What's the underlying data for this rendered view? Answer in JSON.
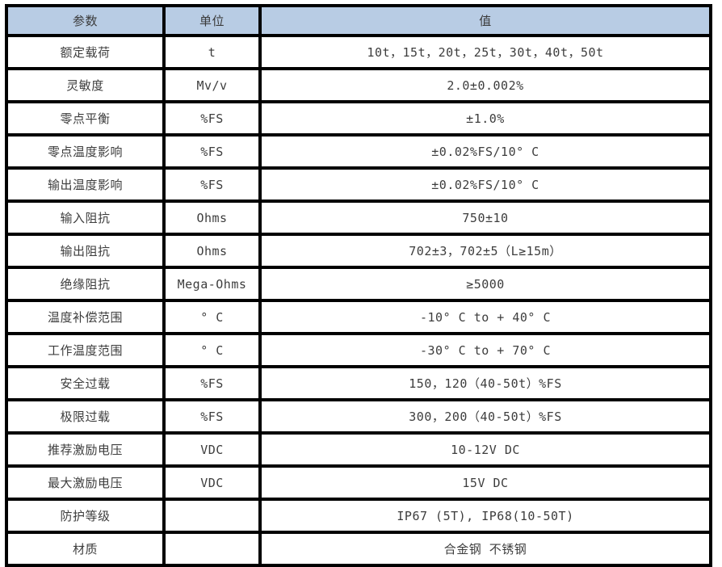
{
  "table": {
    "headers": {
      "param": "参数",
      "unit": "单位",
      "value": "值"
    },
    "rows": [
      {
        "param": "额定载荷",
        "unit": "t",
        "value": "10t，15t，20t，25t，30t，40t，50t"
      },
      {
        "param": "灵敏度",
        "unit": "Mv/v",
        "value": "2.0±0.002%"
      },
      {
        "param": "零点平衡",
        "unit": "%FS",
        "value": "±1.0%"
      },
      {
        "param": "零点温度影响",
        "unit": "%FS",
        "value": "±0.02%FS/10° C"
      },
      {
        "param": "输出温度影响",
        "unit": "%FS",
        "value": "±0.02%FS/10° C"
      },
      {
        "param": "输入阻抗",
        "unit": "Ohms",
        "value": "750±10"
      },
      {
        "param": "输出阻抗",
        "unit": "Ohms",
        "value": "702±3，702±5（L≥15m）"
      },
      {
        "param": "绝缘阻抗",
        "unit": "Mega-Ohms",
        "value": "≥5000"
      },
      {
        "param": "温度补偿范围",
        "unit": "° C",
        "value": "-10° C to + 40° C"
      },
      {
        "param": "工作温度范围",
        "unit": "° C",
        "value": "-30° C to + 70° C"
      },
      {
        "param": "安全过载",
        "unit": "%FS",
        "value": "150，120（40-50t）%FS"
      },
      {
        "param": "极限过载",
        "unit": "%FS",
        "value": "300，200（40-50t）%FS"
      },
      {
        "param": "推荐激励电压",
        "unit": "VDC",
        "value": "10-12V DC"
      },
      {
        "param": "最大激励电压",
        "unit": "VDC",
        "value": "15V DC"
      },
      {
        "param": "防护等级",
        "unit": "",
        "value": "IP67 (5T), IP68(10-50T)"
      },
      {
        "param": "材质",
        "unit": "",
        "value": "合金钢 不锈钢"
      }
    ],
    "colors": {
      "header_bg": "#b8cce4",
      "border": "#000000",
      "text": "#3d3d3d",
      "cell_bg": "#ffffff"
    }
  }
}
